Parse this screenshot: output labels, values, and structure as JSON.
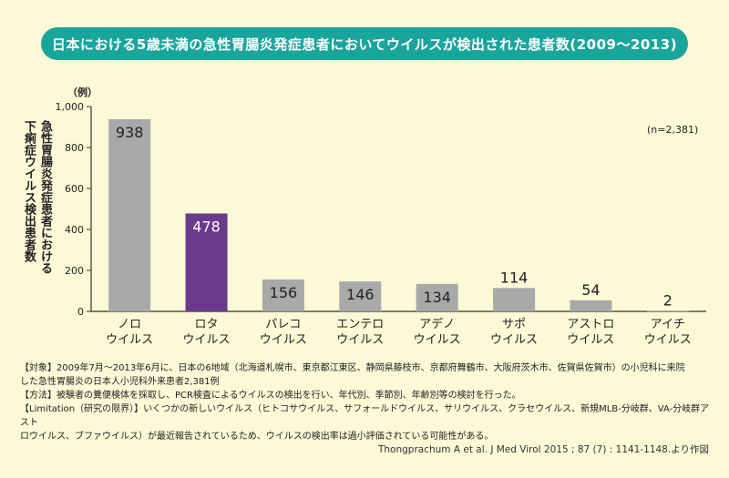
{
  "chart_data": {
    "type": "bar",
    "title": "日本における5歳未満の急性胃腸炎発症患者においてウイルスが検出された患者数(2009〜2013)",
    "ylabel": "急性胃腸炎発症患者における\n下痢症ウイルス検出患者数",
    "unit": "（例）",
    "annotation": "(n=2,381)",
    "ylim": [
      0,
      1000
    ],
    "yticks": [
      "1,000",
      "800",
      "600",
      "400",
      "200",
      "0"
    ],
    "categories": [
      "ノロ\nウイルス",
      "ロタ\nウイルス",
      "パレコ\nウイルス",
      "エンテロ\nウイルス",
      "アデノ\nウイルス",
      "サポ\nウイルス",
      "アストロ\nウイルス",
      "アイチ\nウイルス"
    ],
    "values": [
      938,
      478,
      156,
      146,
      134,
      114,
      54,
      2
    ],
    "grid": false,
    "colors": {
      "default_bar": "#a9a9a9",
      "highlight_bar": "#6b3a8c",
      "highlight_index": 1,
      "title_bg": "#1aa59c"
    }
  },
  "notes": [
    "【対象】2009年7月〜2013年6月に、日本の6地域（北海道札幌市、東京都江東区、静岡県藤枝市、京都府舞鶴市、大阪府茨木市、佐賀県佐賀市）の小児科に来院",
    "した急性胃腸炎の日本人小児科外来患者2,381例",
    "【方法】被験者の糞便検体を採取し、PCR検査によるウイルスの検出を行い、年代別、季節別、年齢別等の検討を行った。",
    "【Limitation（研究の限界）】いくつかの新しいウイルス（ヒトコサウイルス、サフォールドウイルス、サリウイルス、クラセウイルス、新規MLB-分岐群、VA-分岐群アスト",
    "ロウイルス、ブファウイルス）が最近報告されているため、ウイルスの検出率は過小評価されている可能性がある。"
  ],
  "source": "Thongprachum A et al. J Med Virol 2015 ; 87 (7) : 1141-1148.より作図"
}
